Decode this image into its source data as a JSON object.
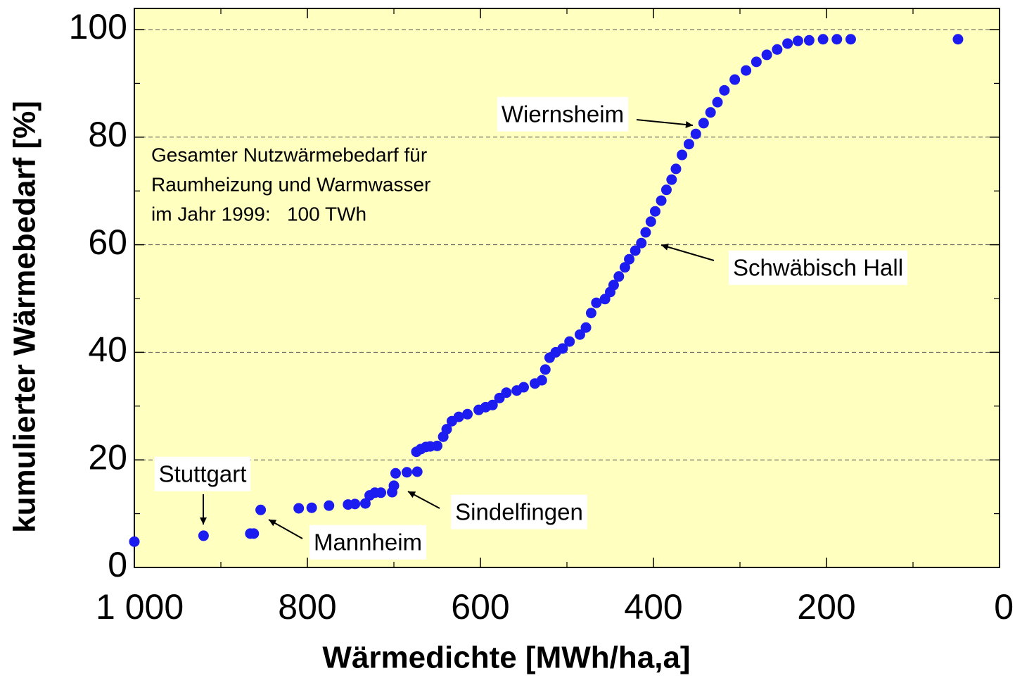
{
  "chart_data": {
    "type": "scatter",
    "x_label": "Wärmedichte [MWh/ha,a]",
    "y_label": "kumulierter Wärmebedarf [%]",
    "color": "#1c1cf0",
    "xlim": [
      1000,
      0
    ],
    "ylim": [
      0,
      100
    ],
    "xticks": [
      {
        "value": 1000,
        "label": "1 000"
      },
      800,
      600,
      400,
      200,
      0
    ],
    "xminor_ticks": [
      900,
      700,
      500,
      300,
      100
    ],
    "yticks": [
      0,
      20,
      40,
      60,
      80,
      100
    ],
    "yminor_ticks": [
      10,
      30,
      50,
      70,
      90
    ],
    "grid": true,
    "info_text": [
      "Gesamter Nutzwärmebedarf für",
      "Raumheizung und Warmwasser",
      "im Jahr 1999:   100 TWh"
    ],
    "annotations": [
      "Wiernsheim",
      "Schwäbisch Hall",
      "Stuttgart",
      "Mannheim",
      "Sindelfingen"
    ],
    "x": [
      1000,
      920,
      866,
      862,
      854,
      810,
      795,
      775,
      753,
      745,
      733,
      728,
      722,
      715,
      702,
      700,
      698,
      685,
      673,
      674,
      669,
      663,
      658,
      650,
      643,
      639,
      633,
      625,
      615,
      602,
      594,
      586,
      578,
      570,
      558,
      550,
      537,
      529,
      525,
      520,
      513,
      505,
      497,
      485,
      478,
      472,
      466,
      456,
      450,
      446,
      440,
      433,
      428,
      421,
      414,
      409,
      403,
      398,
      391,
      385,
      379,
      374,
      367,
      359,
      351,
      342,
      334,
      326,
      318,
      306,
      293,
      281,
      269,
      257,
      245,
      233,
      220,
      204,
      188,
      172,
      48
    ],
    "y": [
      4.8,
      5.9,
      6.3,
      6.3,
      10.7,
      11,
      11.1,
      11.5,
      11.7,
      11.8,
      11.9,
      13.4,
      13.9,
      13.9,
      14,
      15.2,
      17.5,
      17.7,
      17.8,
      21.5,
      22,
      22.4,
      22.5,
      22.6,
      24.3,
      25.7,
      27.2,
      28,
      28.5,
      29.3,
      29.8,
      30.2,
      31.5,
      32.5,
      32.9,
      33.5,
      34.2,
      34.8,
      36.8,
      39,
      40,
      40.7,
      42,
      43.3,
      44.6,
      47.3,
      49.2,
      49.9,
      51.2,
      52.5,
      54.1,
      55.8,
      57.3,
      58.9,
      60.3,
      62.3,
      64.3,
      66.2,
      68.2,
      70.2,
      72.1,
      74.1,
      76.7,
      78.7,
      80.6,
      82.6,
      84.6,
      86.5,
      88.7,
      90.7,
      92.4,
      94,
      95.3,
      96.3,
      97.4,
      97.9,
      98,
      98.2,
      98.2,
      98.2,
      98.2
    ]
  }
}
